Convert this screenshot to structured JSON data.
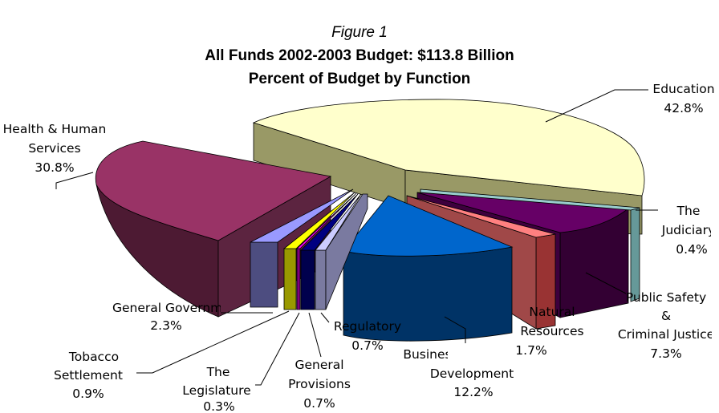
{
  "chart_data": {
    "type": "pie",
    "figure_label": "Figure 1",
    "title": "All Funds 2002-2003 Budget: $113.8 Billion",
    "subtitle": "Percent of Budget by Function",
    "slices": [
      {
        "label": "Education",
        "value": 42.8,
        "value_label": "42.8%",
        "color": "#ffffcc"
      },
      {
        "label": "The Judiciary",
        "value": 0.4,
        "value_label": "0.4%",
        "color": "#99cccc"
      },
      {
        "label": "Public Safety & Criminal Justice",
        "value": 7.3,
        "value_label": "7.3%",
        "color": "#660066"
      },
      {
        "label": "Natural Resources",
        "value": 1.7,
        "value_label": "1.7%",
        "color": "#ff8080"
      },
      {
        "label": "Business & Economic Development",
        "value": 12.2,
        "value_label": "12.2%",
        "color": "#0066cc"
      },
      {
        "label": "Regulatory",
        "value": 0.7,
        "value_label": "0.7%",
        "color": "#ccccff"
      },
      {
        "label": "General Provisions",
        "value": 0.7,
        "value_label": "0.7%",
        "color": "#000080"
      },
      {
        "label": "The Legislature",
        "value": 0.3,
        "value_label": "0.3%",
        "color": "#ff00ff"
      },
      {
        "label": "Tobacco Settlement",
        "value": 0.9,
        "value_label": "0.9%",
        "color": "#ffff00"
      },
      {
        "label": "General Government",
        "value": 2.3,
        "value_label": "2.3%",
        "color": "#9999ff"
      },
      {
        "label": "Health & Human Services",
        "value": 30.8,
        "value_label": "30.8%",
        "color": "#993366"
      }
    ]
  },
  "labels": {
    "education": "Education",
    "judiciary_1": "The",
    "judiciary_2": "Judiciary",
    "public_safety_1": "Public Safety",
    "public_safety_2": "&",
    "public_safety_3": "Criminal Justice",
    "natural_resources_1": "Natural",
    "natural_resources_2": "Resources",
    "business_1": "Business & Economic",
    "business_2": "Development",
    "regulatory": "Regulatory",
    "general_provisions_1": "General",
    "general_provisions_2": "Provisions",
    "legislature_1": "The",
    "legislature_2": "Legislature",
    "tobacco_1": "Tobacco",
    "tobacco_2": "Settlement",
    "general_government": "General Government",
    "health_1": "Health & Human",
    "health_2": "Services"
  }
}
